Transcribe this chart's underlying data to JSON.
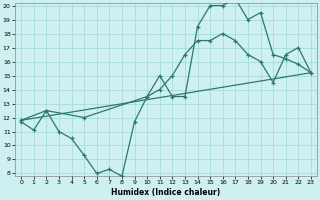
{
  "xlabel": "Humidex (Indice chaleur)",
  "xlim": [
    -0.5,
    23.5
  ],
  "ylim": [
    8,
    20
  ],
  "xticks": [
    0,
    1,
    2,
    3,
    4,
    5,
    6,
    7,
    8,
    9,
    10,
    11,
    12,
    13,
    14,
    15,
    16,
    17,
    18,
    19,
    20,
    21,
    22,
    23
  ],
  "yticks": [
    8,
    9,
    10,
    11,
    12,
    13,
    14,
    15,
    16,
    17,
    18,
    19,
    20
  ],
  "bg_color": "#cff0f0",
  "grid_color": "#a0d8d8",
  "line_color": "#2a7a6a",
  "line1_x": [
    0,
    1,
    2,
    3,
    4,
    5,
    6,
    7,
    8,
    9,
    10,
    11,
    12,
    13,
    14,
    15,
    16,
    17,
    18,
    19,
    20,
    21,
    22,
    23
  ],
  "line1_y": [
    11.7,
    11.1,
    12.5,
    11.0,
    10.5,
    9.3,
    8.0,
    8.3,
    7.8,
    11.7,
    13.5,
    15.0,
    13.5,
    13.5,
    18.5,
    20.0,
    20.0,
    20.5,
    19.0,
    19.5,
    16.5,
    16.2,
    15.8,
    15.2
  ],
  "line2_x": [
    0,
    2,
    5,
    10,
    11,
    12,
    13,
    14,
    15,
    16,
    17,
    18,
    19,
    20,
    21,
    22,
    23
  ],
  "line2_y": [
    11.8,
    12.5,
    12.0,
    13.5,
    14.0,
    15.0,
    16.5,
    17.5,
    17.5,
    18.0,
    17.5,
    16.5,
    16.0,
    14.5,
    16.5,
    17.0,
    15.2
  ],
  "line3_x": [
    0,
    23
  ],
  "line3_y": [
    11.8,
    15.2
  ]
}
